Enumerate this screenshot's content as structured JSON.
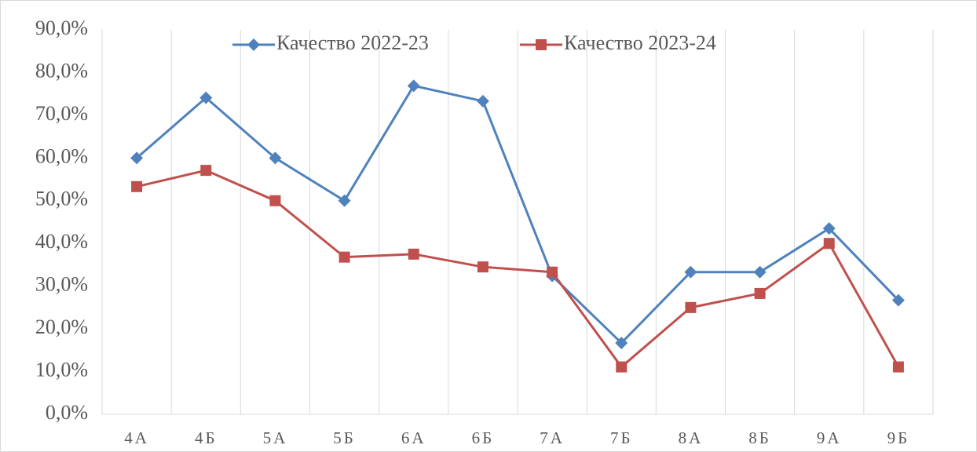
{
  "chart_data": {
    "type": "line",
    "categories": [
      "4А",
      "4Б",
      "5А",
      "5Б",
      "6А",
      "6Б",
      "7А",
      "7Б",
      "8А",
      "8Б",
      "9А",
      "9Б"
    ],
    "series": [
      {
        "name": "Качество 2022-23",
        "color": "#4f81bd",
        "marker": "diamond",
        "values": [
          60,
          74.1,
          60,
          50,
          76.9,
          73.3,
          32.4,
          16.7,
          33.3,
          33.3,
          43.5,
          26.7
        ]
      },
      {
        "name": "Качество 2023-24",
        "color": "#c0504d",
        "marker": "square",
        "values": [
          53.3,
          57.1,
          50,
          36.8,
          37.5,
          34.5,
          33.3,
          11.1,
          25,
          28.3,
          40,
          11.1
        ]
      }
    ],
    "ylim": [
      0,
      90
    ],
    "yticks": [
      {
        "value": 0,
        "label": "0,0%"
      },
      {
        "value": 10,
        "label": "10,0%"
      },
      {
        "value": 20,
        "label": "20,0%"
      },
      {
        "value": 30,
        "label": "30,0%"
      },
      {
        "value": 40,
        "label": "40,0%"
      },
      {
        "value": 50,
        "label": "50,0%"
      },
      {
        "value": 60,
        "label": "60,0%"
      },
      {
        "value": 70,
        "label": "70,0%"
      },
      {
        "value": 80,
        "label": "80,0%"
      },
      {
        "value": 90,
        "label": "90,0%"
      }
    ],
    "legend": "top"
  }
}
